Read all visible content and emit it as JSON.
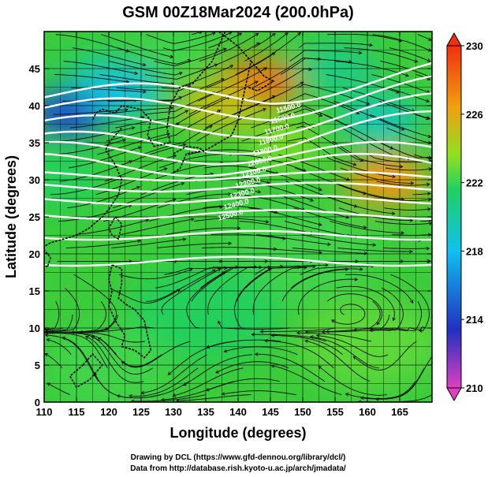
{
  "chart_data": {
    "type": "heatmap",
    "title": "GSM 00Z18Mar2024 (200.0hPa)",
    "xlabel": "Longitude (degrees)",
    "ylabel": "Latitude  (degrees)",
    "xlim": [
      110,
      170
    ],
    "ylim": [
      0,
      50
    ],
    "x_ticks": [
      "110",
      "115",
      "120",
      "125",
      "130",
      "135",
      "140",
      "145",
      "150",
      "155",
      "160",
      "165"
    ],
    "y_ticks": [
      "0",
      "5",
      "10",
      "15",
      "20",
      "25",
      "30",
      "35",
      "40",
      "45"
    ],
    "grid": true,
    "colorbar": {
      "range": [
        210,
        230
      ],
      "ticks": [
        "210",
        "214",
        "218",
        "222",
        "226",
        "230"
      ],
      "colors": [
        "#e040c0",
        "#2030c0",
        "#10c0f0",
        "#20d060",
        "#90e020",
        "#f0a010",
        "#f03010"
      ]
    },
    "field_features": [
      {
        "kind": "cold",
        "lon": 114,
        "lat": 39,
        "value": 214
      },
      {
        "kind": "cold",
        "lon": 122,
        "lat": 42,
        "value": 217
      },
      {
        "kind": "cold",
        "lon": 162,
        "lat": 38,
        "value": 218
      },
      {
        "kind": "warm",
        "lon": 143,
        "lat": 43,
        "value": 228
      },
      {
        "kind": "warm",
        "lon": 163,
        "lat": 30,
        "value": 227
      },
      {
        "kind": "warm",
        "lon": 137,
        "lat": 40,
        "value": 225
      }
    ],
    "contour_labels": [
      "11500.0",
      "11600.0",
      "11700.0",
      "11800.0",
      "11900.0",
      "12000.0",
      "12100.0",
      "12200.0",
      "12300.0",
      "12400.0",
      "12500.0"
    ]
  },
  "credits": {
    "line1": "Drawing by DCL (https://www.gfd-dennou.org/library/dcl/)",
    "line2": "Data from http://database.rish.kyoto-u.ac.jp/arch/jmadata/"
  }
}
